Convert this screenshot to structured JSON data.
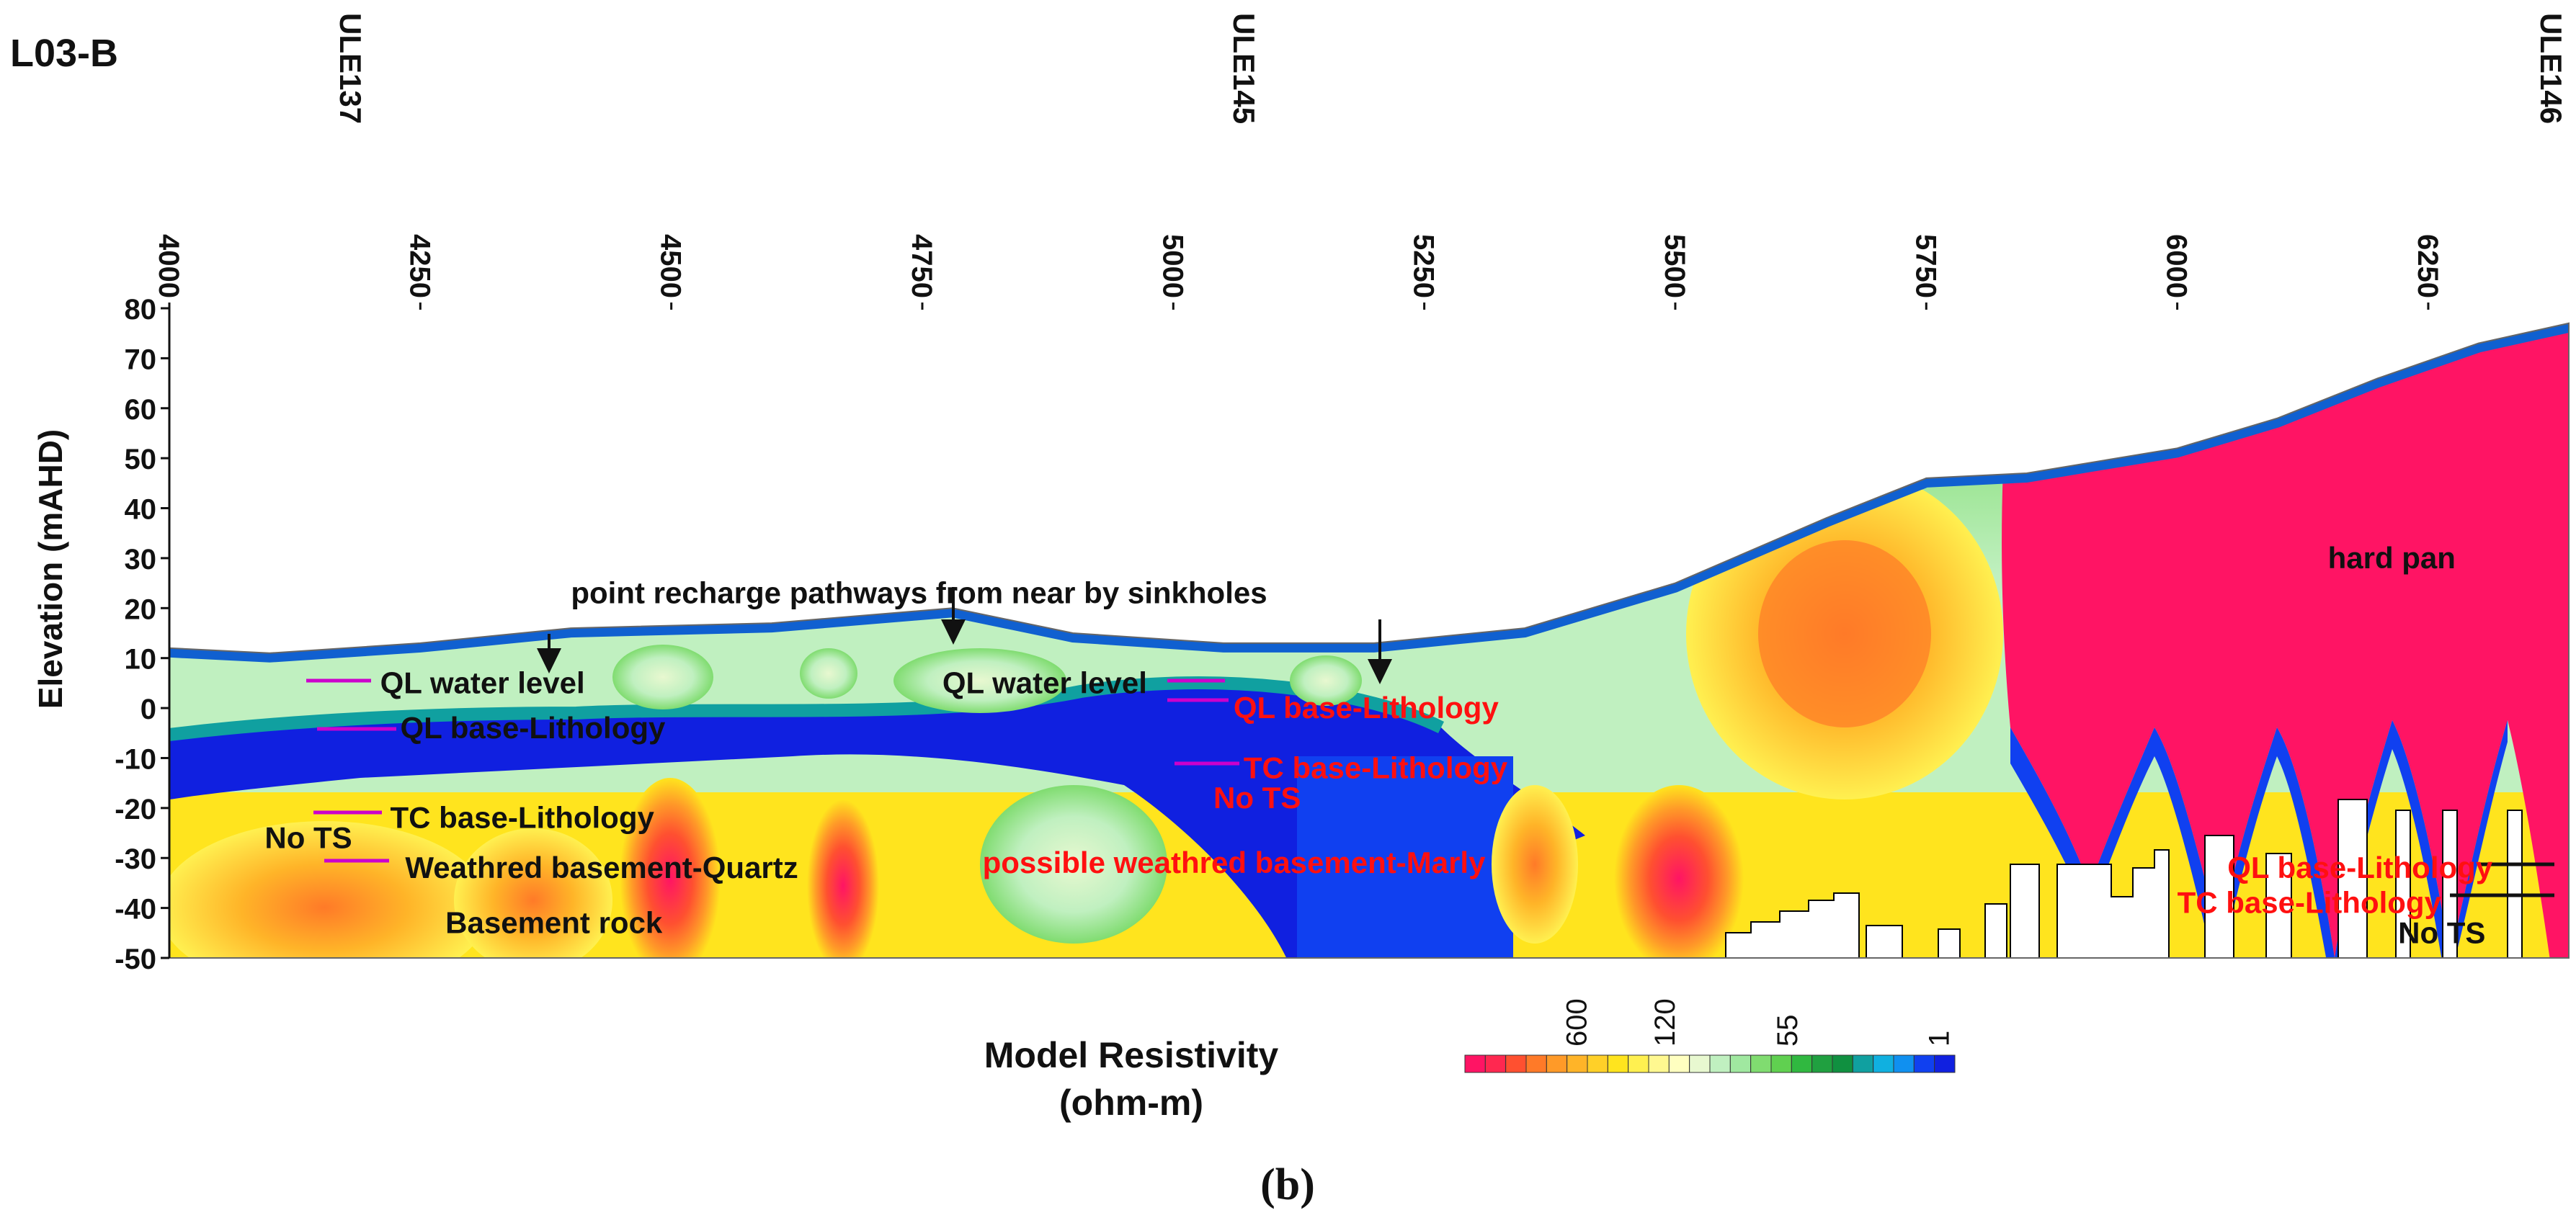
{
  "figure_id": "L03-B",
  "caption": "(b)",
  "chart_data": {
    "type": "heatmap",
    "title": "",
    "xlabel": "",
    "ylabel": "Elevation (mAHD)",
    "xlim": [
      4000,
      6390
    ],
    "ylim": [
      -50,
      80
    ],
    "x_ticks": [
      4000,
      4250,
      4500,
      4750,
      5000,
      5250,
      5500,
      5750,
      6000,
      6250
    ],
    "y_ticks": [
      80,
      70,
      60,
      50,
      40,
      30,
      20,
      10,
      0,
      -10,
      -20,
      -30,
      -40,
      -50
    ],
    "boreholes": [
      {
        "name": "ULE137",
        "x": 4180
      },
      {
        "name": "ULE145",
        "x": 5070
      },
      {
        "name": "ULE146",
        "x": 6380
      }
    ],
    "surface_profile": [
      {
        "x": 4000,
        "y": 12
      },
      {
        "x": 4100,
        "y": 11
      },
      {
        "x": 4250,
        "y": 13
      },
      {
        "x": 4400,
        "y": 16
      },
      {
        "x": 4600,
        "y": 17
      },
      {
        "x": 4780,
        "y": 20
      },
      {
        "x": 4900,
        "y": 15
      },
      {
        "x": 5050,
        "y": 13
      },
      {
        "x": 5200,
        "y": 13
      },
      {
        "x": 5350,
        "y": 16
      },
      {
        "x": 5500,
        "y": 25
      },
      {
        "x": 5650,
        "y": 38
      },
      {
        "x": 5750,
        "y": 46
      },
      {
        "x": 5850,
        "y": 47
      },
      {
        "x": 6000,
        "y": 52
      },
      {
        "x": 6100,
        "y": 58
      },
      {
        "x": 6200,
        "y": 66
      },
      {
        "x": 6300,
        "y": 73
      },
      {
        "x": 6390,
        "y": 77
      }
    ],
    "annotations": [
      {
        "text": "point recharge pathways from near by sinkholes",
        "x": 4400,
        "y": 23,
        "color": "#111111"
      },
      {
        "text": "QL water level",
        "x": 4210,
        "y": 5,
        "color": "#111111"
      },
      {
        "text": "QL base-Lithology",
        "x": 4230,
        "y": -4,
        "color": "#111111"
      },
      {
        "text": "TC base-Lithology",
        "x": 4220,
        "y": -22,
        "color": "#111111"
      },
      {
        "text": "No TS",
        "x": 4095,
        "y": -26,
        "color": "#111111"
      },
      {
        "text": "Weathred basement-Quartz",
        "x": 4235,
        "y": -32,
        "color": "#111111"
      },
      {
        "text": "Basement rock",
        "x": 4275,
        "y": -43,
        "color": "#111111"
      },
      {
        "text": "QL water level",
        "x": 4770,
        "y": 5,
        "color": "#111111"
      },
      {
        "text": "QL base-Lithology",
        "x": 5060,
        "y": 0,
        "color": "#ff1010"
      },
      {
        "text": "TC base-Lithology",
        "x": 5070,
        "y": -12,
        "color": "#ff1010"
      },
      {
        "text": "No TS",
        "x": 5040,
        "y": -18,
        "color": "#ff1010"
      },
      {
        "text": "possible weathred basement-Marly",
        "x": 4810,
        "y": -31,
        "color": "#ff1010"
      },
      {
        "text": "hard pan",
        "x": 6150,
        "y": 30,
        "color": "#111111"
      },
      {
        "text": "QL base-Lithology",
        "x": 6050,
        "y": -32,
        "color": "#ff1010"
      },
      {
        "text": "TC base-Lithology",
        "x": 6000,
        "y": -39,
        "color": "#ff1010"
      },
      {
        "text": "No TS",
        "x": 6220,
        "y": -45,
        "color": "#111111"
      }
    ],
    "legend": {
      "title_line1": "Model Resistivity",
      "title_line2": "(ohm-m)",
      "tick_labels": [
        "600",
        "120",
        "55",
        "1"
      ],
      "colors": [
        "#ff1464",
        "#ff2850",
        "#ff5030",
        "#ff7a28",
        "#ff9a28",
        "#ffb428",
        "#ffd028",
        "#ffe41e",
        "#fff050",
        "#fff890",
        "#ffffc0",
        "#e8f8d0",
        "#c0f0c0",
        "#a0e8a0",
        "#80dc70",
        "#60d050",
        "#30b840",
        "#20a040",
        "#109040",
        "#10a0a0",
        "#10b0e0",
        "#1090f0",
        "#1040f0",
        "#1020e0"
      ]
    }
  }
}
